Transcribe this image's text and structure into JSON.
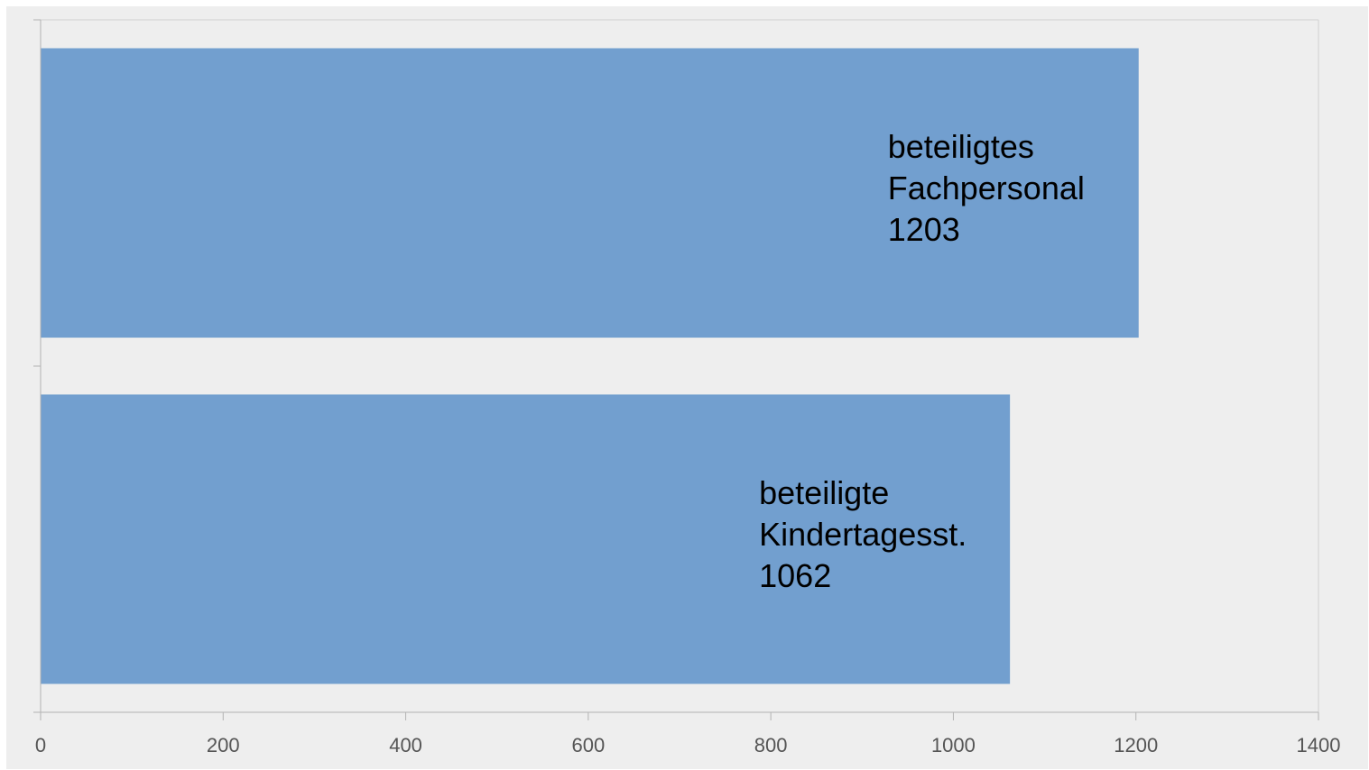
{
  "chart_data": {
    "type": "bar",
    "orientation": "horizontal",
    "categories": [
      "beteiligtes Fachpersonal",
      "beteiligte Kindertagesst."
    ],
    "values": [
      1203,
      1062
    ],
    "color": "#729fcf",
    "xlim": [
      0,
      1400
    ],
    "xticks": [
      0,
      200,
      400,
      600,
      800,
      1000,
      1200,
      1400
    ],
    "grid": false
  }
}
